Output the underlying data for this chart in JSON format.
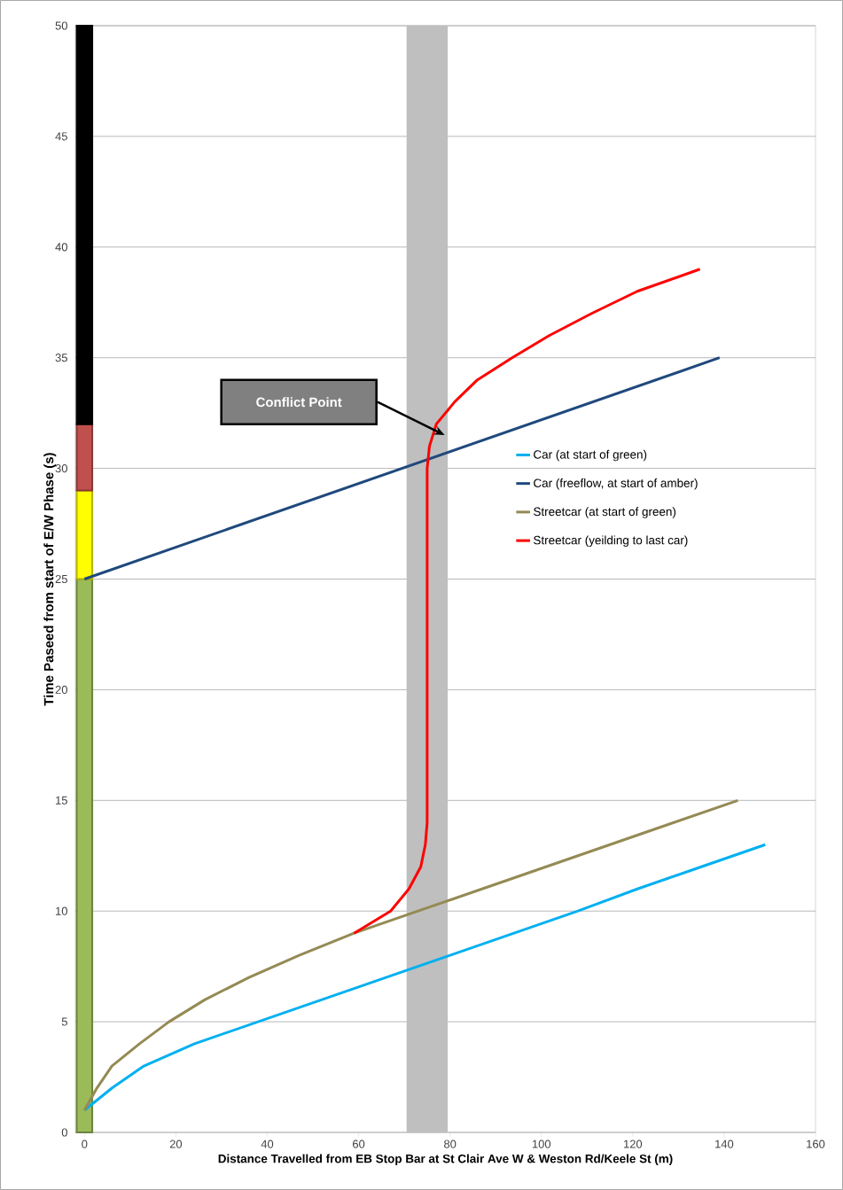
{
  "chart_data": {
    "type": "line",
    "xlabel": "Distance Travelled from EB Stop Bar at St Clair Ave W & Weston Rd/Keele St (m)",
    "ylabel": "Time Paseed from start of E/W Phase (s)",
    "xlim": [
      -2,
      160
    ],
    "ylim": [
      0,
      50
    ],
    "xticks": [
      0,
      20,
      40,
      60,
      80,
      100,
      120,
      140,
      160
    ],
    "yticks": [
      0,
      5,
      10,
      15,
      20,
      25,
      30,
      35,
      40,
      45,
      50
    ],
    "grid": "y",
    "legend": "right",
    "stacked": true,
    "bands": [
      {
        "axis": "x",
        "from": 70.5,
        "to": 79.5,
        "color": "#bfbfbf"
      }
    ],
    "annotations": [
      "Conflict Point"
    ],
    "series": [
      {
        "type": "bar",
        "color": "#9bbb59",
        "x": [
          0
        ],
        "values": [
          25
        ]
      },
      {
        "type": "bar",
        "color": "#ffff00",
        "x": [
          0
        ],
        "values": [
          4
        ]
      },
      {
        "type": "bar",
        "color": "#c0504d",
        "x": [
          0
        ],
        "values": [
          3
        ]
      },
      {
        "type": "bar",
        "color": "#000000",
        "x": [
          0
        ],
        "values": [
          18
        ]
      },
      {
        "name": "Car (at start of green)",
        "color": "#00b0f0",
        "x": [
          0,
          6,
          13,
          24,
          38,
          52,
          66,
          80,
          94,
          108,
          121,
          135,
          149
        ],
        "values": [
          1,
          2,
          3,
          4,
          5,
          6,
          7,
          8,
          9,
          10,
          11,
          12,
          13
        ]
      },
      {
        "name": "Car (freeflow, at start of amber)",
        "color": "#1f497d",
        "x": [
          0,
          139
        ],
        "values": [
          25,
          35
        ]
      },
      {
        "name": "Streetcar (at start of green)",
        "color": "#948a54",
        "x": [
          0,
          2.7,
          6,
          12,
          18.5,
          26.4,
          36,
          47,
          59,
          73,
          87,
          101,
          115,
          129,
          143
        ],
        "values": [
          1,
          2,
          3,
          4,
          5,
          6,
          7,
          8,
          9,
          10,
          11,
          12,
          13,
          14,
          15
        ]
      },
      {
        "name": "Streetcar (yeilding to last car)",
        "color": "#ff0000",
        "x": [
          59,
          67,
          71,
          73.6,
          74.6,
          75,
          75,
          75.5,
          77,
          81,
          86,
          93.6,
          101.7,
          111,
          121,
          134.7
        ],
        "values": [
          9,
          10,
          11,
          12,
          13,
          14,
          30,
          31,
          32,
          33,
          34,
          35,
          36,
          37,
          38,
          39
        ]
      }
    ]
  }
}
